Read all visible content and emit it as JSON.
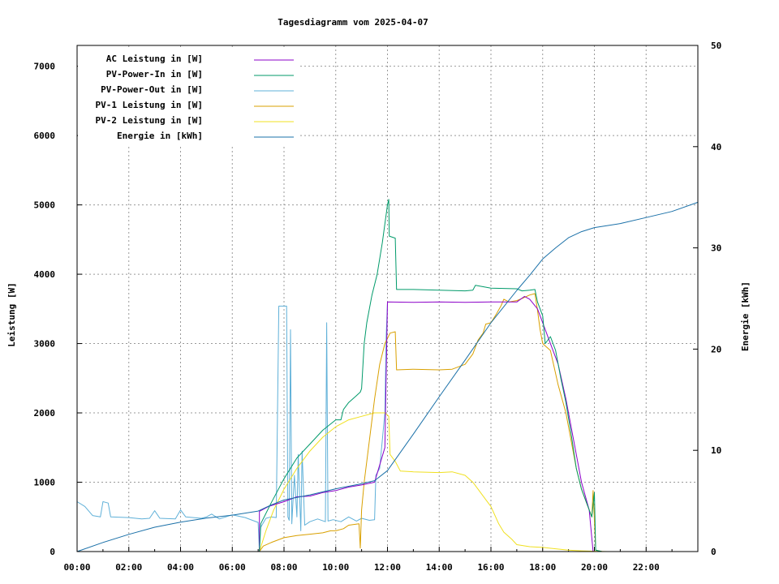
{
  "chart_data": {
    "type": "line",
    "title": "Tagesdiagramm vom 2025-04-07",
    "ylabel": "Leistung [W]",
    "y2label": "Energie [kWh]",
    "xlim": [
      0,
      24
    ],
    "ylim": [
      0,
      7300
    ],
    "y2lim": [
      0,
      50
    ],
    "grid": true,
    "legend_position": "top-left",
    "xticks": [
      {
        "v": 0,
        "label": "00:00"
      },
      {
        "v": 2,
        "label": "02:00"
      },
      {
        "v": 4,
        "label": "04:00"
      },
      {
        "v": 6,
        "label": "06:00"
      },
      {
        "v": 8,
        "label": "08:00"
      },
      {
        "v": 10,
        "label": "10:00"
      },
      {
        "v": 12,
        "label": "12:00"
      },
      {
        "v": 14,
        "label": "14:00"
      },
      {
        "v": 16,
        "label": "16:00"
      },
      {
        "v": 18,
        "label": "18:00"
      },
      {
        "v": 20,
        "label": "20:00"
      },
      {
        "v": 22,
        "label": "22:00"
      }
    ],
    "yticks": [
      {
        "v": 0,
        "label": "0"
      },
      {
        "v": 1000,
        "label": "1000"
      },
      {
        "v": 2000,
        "label": "2000"
      },
      {
        "v": 3000,
        "label": "3000"
      },
      {
        "v": 4000,
        "label": "4000"
      },
      {
        "v": 5000,
        "label": "5000"
      },
      {
        "v": 6000,
        "label": "6000"
      },
      {
        "v": 7000,
        "label": "7000"
      }
    ],
    "y2ticks": [
      {
        "v": 0,
        "label": "0"
      },
      {
        "v": 10,
        "label": "10"
      },
      {
        "v": 20,
        "label": "20"
      },
      {
        "v": 30,
        "label": "30"
      },
      {
        "v": 40,
        "label": "40"
      },
      {
        "v": 50,
        "label": "50"
      }
    ],
    "series": [
      {
        "name": "AC Leistung in [W]",
        "color": "#8b00c8",
        "axis": "y",
        "points": [
          [
            7.05,
            0
          ],
          [
            7.05,
            580
          ],
          [
            7.4,
            650
          ],
          [
            8.0,
            720
          ],
          [
            8.5,
            790
          ],
          [
            9.0,
            800
          ],
          [
            9.5,
            850
          ],
          [
            10.0,
            880
          ],
          [
            10.5,
            930
          ],
          [
            11.0,
            960
          ],
          [
            11.5,
            1000
          ],
          [
            11.9,
            1500
          ],
          [
            12.0,
            3600
          ],
          [
            13.0,
            3595
          ],
          [
            14.0,
            3600
          ],
          [
            15.0,
            3595
          ],
          [
            16.0,
            3600
          ],
          [
            17.0,
            3600
          ],
          [
            17.3,
            3680
          ],
          [
            17.5,
            3640
          ],
          [
            17.8,
            3500
          ],
          [
            18.0,
            3300
          ],
          [
            18.3,
            3000
          ],
          [
            18.6,
            2700
          ],
          [
            18.9,
            2200
          ],
          [
            19.2,
            1600
          ],
          [
            19.5,
            1000
          ],
          [
            19.8,
            600
          ],
          [
            19.95,
            0
          ]
        ]
      },
      {
        "name": "PV-Power-In in [W]",
        "color": "#009a6a",
        "axis": "y",
        "points": [
          [
            7.05,
            0
          ],
          [
            7.1,
            400
          ],
          [
            7.5,
            700
          ],
          [
            8.0,
            1050
          ],
          [
            8.5,
            1350
          ],
          [
            9.0,
            1550
          ],
          [
            9.5,
            1750
          ],
          [
            10.0,
            1900
          ],
          [
            10.2,
            1900
          ],
          [
            10.3,
            2050
          ],
          [
            10.5,
            2150
          ],
          [
            10.8,
            2250
          ],
          [
            10.95,
            2300
          ],
          [
            11.0,
            2350
          ],
          [
            11.1,
            3000
          ],
          [
            11.2,
            3300
          ],
          [
            11.4,
            3700
          ],
          [
            11.6,
            4000
          ],
          [
            11.8,
            4450
          ],
          [
            12.0,
            5000
          ],
          [
            12.05,
            5080
          ],
          [
            12.07,
            4550
          ],
          [
            12.3,
            4520
          ],
          [
            12.35,
            3780
          ],
          [
            13.0,
            3780
          ],
          [
            14.0,
            3770
          ],
          [
            15.0,
            3760
          ],
          [
            15.3,
            3770
          ],
          [
            15.4,
            3840
          ],
          [
            16.0,
            3800
          ],
          [
            17.0,
            3790
          ],
          [
            17.2,
            3760
          ],
          [
            17.5,
            3770
          ],
          [
            17.7,
            3780
          ],
          [
            17.8,
            3600
          ],
          [
            18.0,
            3400
          ],
          [
            18.1,
            3000
          ],
          [
            18.3,
            3100
          ],
          [
            18.5,
            2900
          ],
          [
            18.7,
            2500
          ],
          [
            18.9,
            2150
          ],
          [
            19.1,
            1700
          ],
          [
            19.3,
            1200
          ],
          [
            19.5,
            900
          ],
          [
            19.8,
            600
          ],
          [
            19.9,
            500
          ],
          [
            20.0,
            850
          ],
          [
            20.05,
            20
          ],
          [
            20.3,
            0
          ]
        ]
      },
      {
        "name": "PV-Power-Out in [W]",
        "color": "#5fb0d8",
        "axis": "y",
        "points": [
          [
            0,
            720
          ],
          [
            0.3,
            650
          ],
          [
            0.6,
            520
          ],
          [
            0.9,
            500
          ],
          [
            1.0,
            720
          ],
          [
            1.2,
            700
          ],
          [
            1.3,
            500
          ],
          [
            2.0,
            490
          ],
          [
            2.5,
            470
          ],
          [
            2.8,
            480
          ],
          [
            3.0,
            590
          ],
          [
            3.2,
            480
          ],
          [
            3.8,
            470
          ],
          [
            4.0,
            600
          ],
          [
            4.2,
            500
          ],
          [
            4.8,
            480
          ],
          [
            5.0,
            500
          ],
          [
            5.2,
            540
          ],
          [
            5.5,
            470
          ],
          [
            6.0,
            530
          ],
          [
            6.5,
            490
          ],
          [
            7.0,
            420
          ],
          [
            7.05,
            0
          ],
          [
            7.1,
            350
          ],
          [
            7.3,
            480
          ],
          [
            7.5,
            500
          ],
          [
            7.7,
            490
          ],
          [
            7.8,
            3540
          ],
          [
            8.1,
            3540
          ],
          [
            8.15,
            500
          ],
          [
            8.2,
            450
          ],
          [
            8.25,
            3200
          ],
          [
            8.3,
            400
          ],
          [
            8.4,
            1100
          ],
          [
            8.5,
            500
          ],
          [
            8.55,
            1400
          ],
          [
            8.65,
            300
          ],
          [
            8.7,
            1450
          ],
          [
            8.8,
            380
          ],
          [
            9.0,
            430
          ],
          [
            9.3,
            470
          ],
          [
            9.6,
            430
          ],
          [
            9.65,
            3300
          ],
          [
            9.7,
            440
          ],
          [
            9.9,
            460
          ],
          [
            10.2,
            430
          ],
          [
            10.5,
            500
          ],
          [
            10.8,
            440
          ],
          [
            11.0,
            480
          ],
          [
            11.3,
            450
          ],
          [
            11.5,
            460
          ],
          [
            11.55,
            1100
          ],
          [
            11.7,
            1200
          ],
          [
            11.9,
            2000
          ],
          [
            11.95,
            3100
          ],
          [
            12.0,
            3580
          ]
        ]
      },
      {
        "name": "PV-1 Leistung in [W]",
        "color": "#d9a000",
        "axis": "y",
        "points": [
          [
            7.05,
            0
          ],
          [
            7.2,
            80
          ],
          [
            7.5,
            130
          ],
          [
            8.0,
            200
          ],
          [
            8.5,
            230
          ],
          [
            9.0,
            250
          ],
          [
            9.5,
            270
          ],
          [
            9.8,
            300
          ],
          [
            10.0,
            300
          ],
          [
            10.3,
            330
          ],
          [
            10.5,
            380
          ],
          [
            10.9,
            400
          ],
          [
            10.95,
            50
          ],
          [
            11.0,
            600
          ],
          [
            11.1,
            1000
          ],
          [
            11.3,
            1600
          ],
          [
            11.5,
            2200
          ],
          [
            11.7,
            2700
          ],
          [
            11.9,
            3000
          ],
          [
            12.1,
            3150
          ],
          [
            12.3,
            3170
          ],
          [
            12.35,
            2620
          ],
          [
            13.0,
            2630
          ],
          [
            14.0,
            2620
          ],
          [
            14.5,
            2630
          ],
          [
            15.0,
            2700
          ],
          [
            15.3,
            2850
          ],
          [
            15.5,
            3050
          ],
          [
            15.7,
            3150
          ],
          [
            15.8,
            3280
          ],
          [
            16.0,
            3300
          ],
          [
            16.2,
            3420
          ],
          [
            16.4,
            3550
          ],
          [
            16.5,
            3640
          ],
          [
            16.7,
            3600
          ],
          [
            17.0,
            3620
          ],
          [
            17.2,
            3650
          ],
          [
            17.5,
            3700
          ],
          [
            17.7,
            3720
          ],
          [
            17.8,
            3480
          ],
          [
            17.9,
            3200
          ],
          [
            18.0,
            3000
          ],
          [
            18.3,
            2900
          ],
          [
            18.6,
            2400
          ],
          [
            18.9,
            2000
          ],
          [
            19.1,
            1600
          ],
          [
            19.3,
            1200
          ],
          [
            19.5,
            900
          ],
          [
            19.8,
            600
          ],
          [
            19.9,
            500
          ],
          [
            19.95,
            880
          ],
          [
            20.05,
            20
          ],
          [
            20.3,
            0
          ]
        ]
      },
      {
        "name": "PV-2 Leistung in [W]",
        "color": "#f0e020",
        "axis": "y",
        "points": [
          [
            7.05,
            0
          ],
          [
            7.3,
            300
          ],
          [
            7.6,
            600
          ],
          [
            8.0,
            900
          ],
          [
            8.5,
            1200
          ],
          [
            9.0,
            1450
          ],
          [
            9.5,
            1650
          ],
          [
            10.0,
            1800
          ],
          [
            10.5,
            1900
          ],
          [
            11.0,
            1950
          ],
          [
            11.5,
            2000
          ],
          [
            11.9,
            2000
          ],
          [
            12.05,
            1950
          ],
          [
            12.1,
            1400
          ],
          [
            12.3,
            1300
          ],
          [
            12.5,
            1160
          ],
          [
            13.0,
            1150
          ],
          [
            14.0,
            1140
          ],
          [
            14.5,
            1150
          ],
          [
            15.0,
            1100
          ],
          [
            15.3,
            1000
          ],
          [
            15.5,
            900
          ],
          [
            15.8,
            750
          ],
          [
            16.0,
            650
          ],
          [
            16.3,
            400
          ],
          [
            16.5,
            280
          ],
          [
            16.8,
            180
          ],
          [
            17.0,
            100
          ],
          [
            17.5,
            70
          ],
          [
            18.0,
            60
          ],
          [
            18.5,
            40
          ],
          [
            19.0,
            20
          ],
          [
            19.5,
            10
          ],
          [
            20.0,
            5
          ],
          [
            20.5,
            0
          ]
        ]
      },
      {
        "name": "Energie in [kWh]",
        "color": "#1a70a8",
        "axis": "y2",
        "points": [
          [
            0,
            0
          ],
          [
            1,
            0.9
          ],
          [
            2,
            1.7
          ],
          [
            3,
            2.4
          ],
          [
            4,
            2.9
          ],
          [
            5,
            3.3
          ],
          [
            6,
            3.6
          ],
          [
            7,
            4.0
          ],
          [
            7.5,
            4.6
          ],
          [
            8,
            5.1
          ],
          [
            9,
            5.6
          ],
          [
            10,
            6.2
          ],
          [
            11,
            6.7
          ],
          [
            11.5,
            7.0
          ],
          [
            12,
            8.0
          ],
          [
            13,
            11.6
          ],
          [
            14,
            15.3
          ],
          [
            15,
            18.9
          ],
          [
            16,
            22.6
          ],
          [
            17,
            25.8
          ],
          [
            17.5,
            27.3
          ],
          [
            18,
            28.9
          ],
          [
            18.5,
            30.0
          ],
          [
            19,
            31.0
          ],
          [
            19.5,
            31.6
          ],
          [
            20,
            32.0
          ],
          [
            21,
            32.4
          ],
          [
            22,
            33.0
          ],
          [
            23,
            33.6
          ],
          [
            24,
            34.5
          ]
        ]
      }
    ]
  }
}
